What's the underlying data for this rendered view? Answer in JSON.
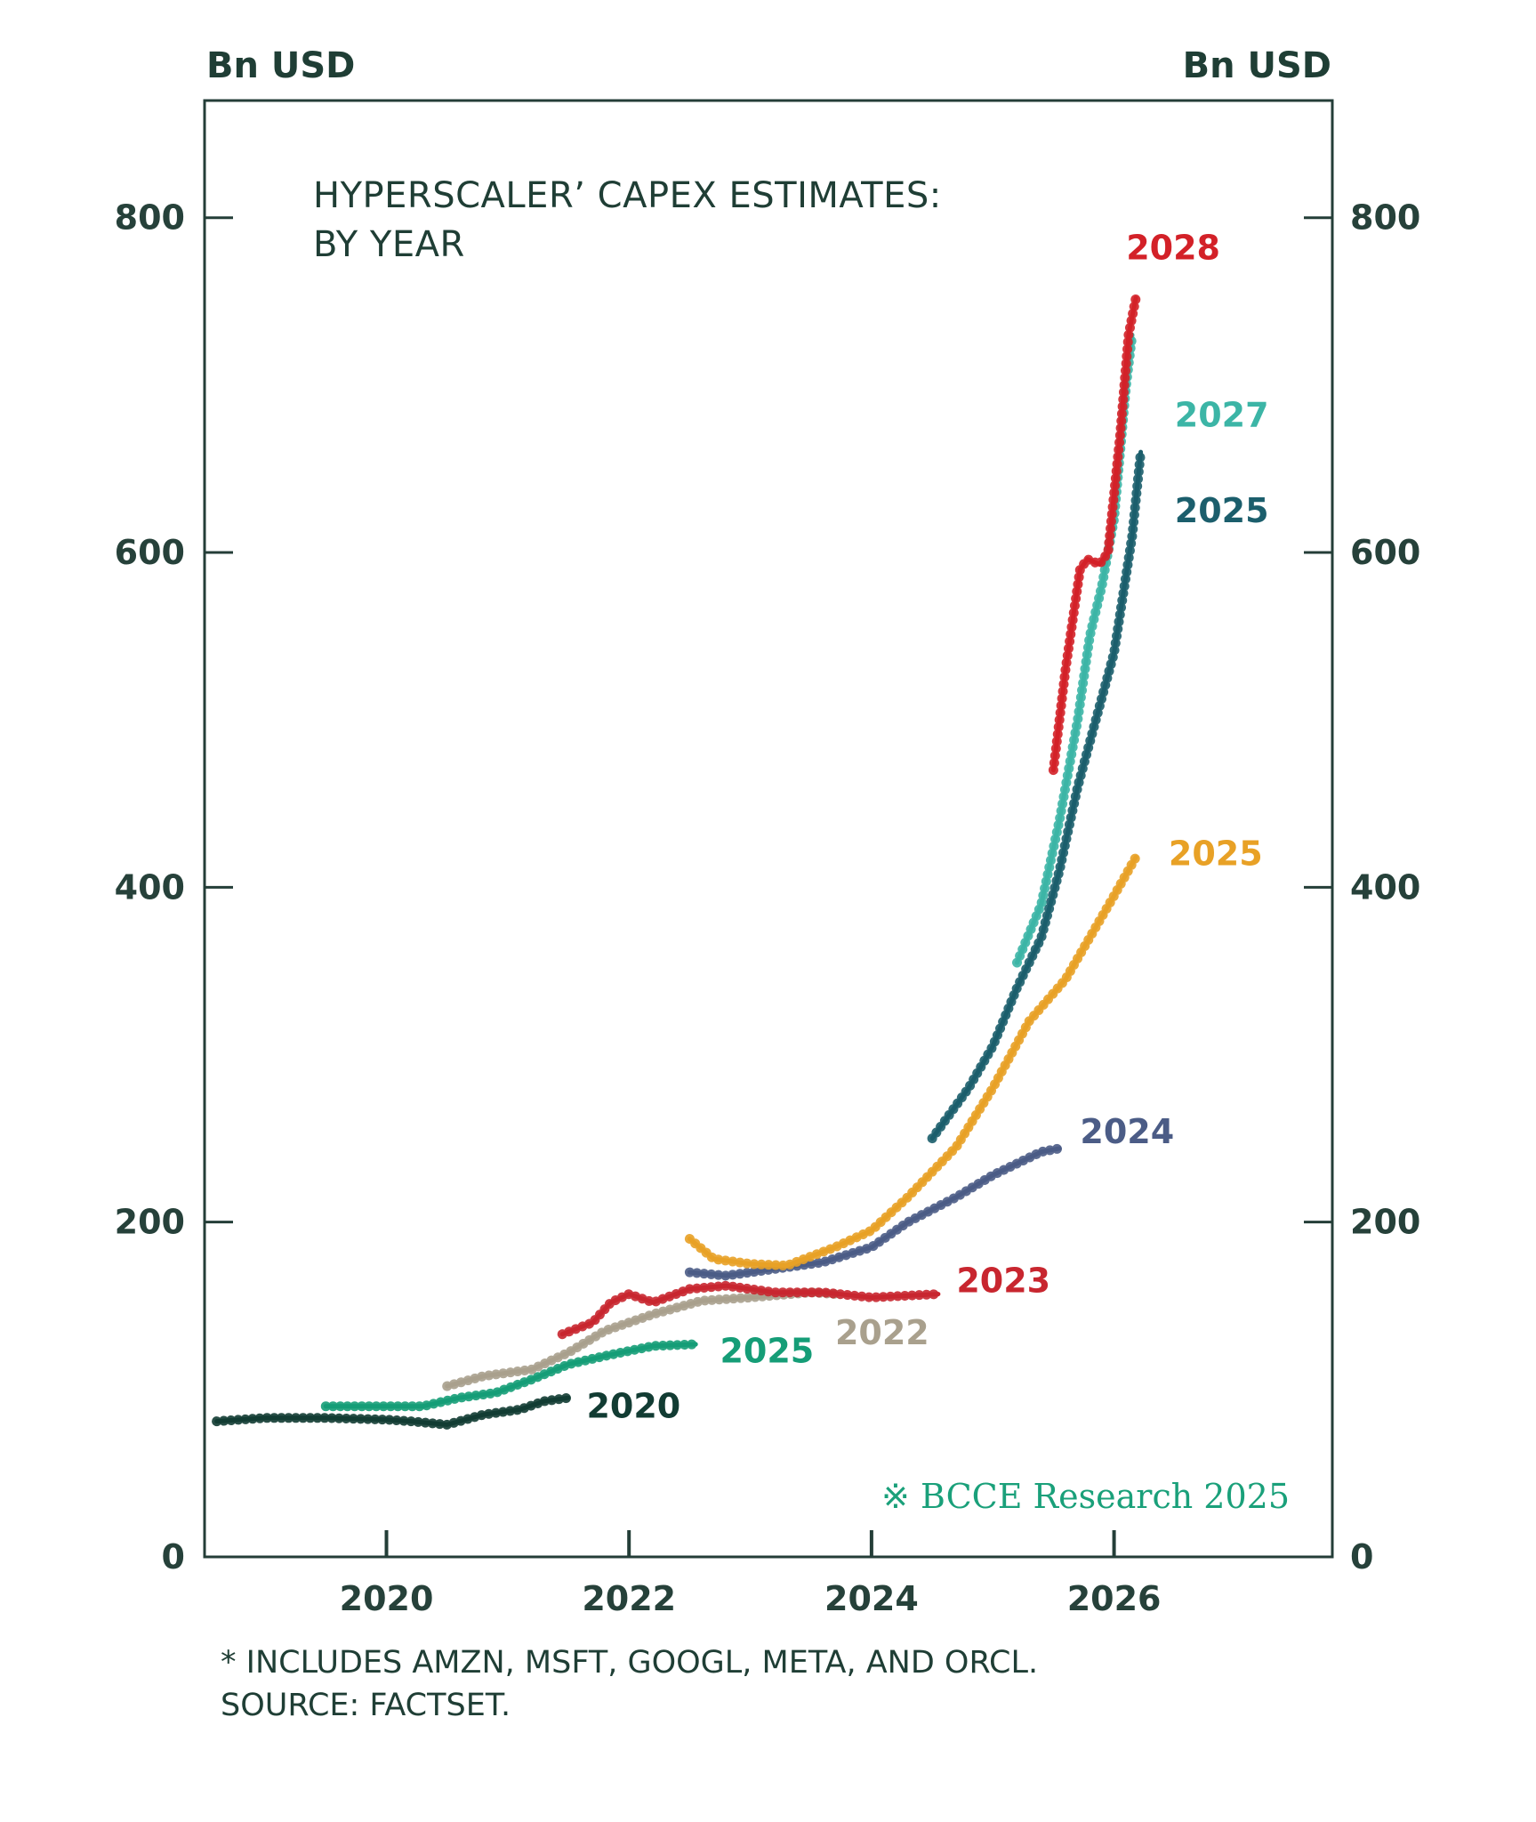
{
  "chart_data": {
    "type": "line",
    "title": "HYPERSCALER’ CAPEX ESTIMATES:",
    "subtitle": "BY YEAR",
    "ylabel_left": "Bn USD",
    "ylabel_right": "Bn USD",
    "ylim": [
      0,
      870
    ],
    "xlim": [
      2018.5,
      2027.8
    ],
    "y_ticks_left": [
      {
        "value": 0,
        "label": "0"
      },
      {
        "value": 200,
        "label": "200"
      },
      {
        "value": 400,
        "label": "400"
      },
      {
        "value": 600,
        "label": "600"
      },
      {
        "value": 800,
        "label": "800"
      }
    ],
    "y_ticks_right": [
      {
        "value": 0,
        "label": "0"
      },
      {
        "value": 200,
        "label": "200"
      },
      {
        "value": 400,
        "label": "400"
      },
      {
        "value": 600,
        "label": "600"
      },
      {
        "value": 800,
        "label": "800"
      }
    ],
    "x_ticks": [
      {
        "value": 2020,
        "label": "2020"
      },
      {
        "value": 2022,
        "label": "2022"
      },
      {
        "value": 2024,
        "label": "2024"
      },
      {
        "value": 2026,
        "label": "2026"
      }
    ],
    "grid": false,
    "series": [
      {
        "name": "2020",
        "color": "#123c33",
        "label_at": [
          2021.65,
          90
        ],
        "x": [
          2018.6,
          2019.0,
          2019.5,
          2020.0,
          2020.2,
          2020.5,
          2020.8,
          2021.1,
          2021.3,
          2021.5
        ],
        "y": [
          81,
          83,
          83,
          82,
          81,
          79,
          85,
          88,
          93,
          95
        ]
      },
      {
        "name": "2025",
        "color": "#159d77",
        "label_at": [
          2022.75,
          123
        ],
        "x": [
          2019.5,
          2020.0,
          2020.3,
          2020.6,
          2020.9,
          2021.2,
          2021.5,
          2021.8,
          2022.2,
          2022.55
        ],
        "y": [
          90,
          90,
          90,
          95,
          98,
          106,
          115,
          120,
          126,
          127
        ]
      },
      {
        "name": "2022",
        "color": "#a9a08d",
        "label_at": [
          2023.7,
          134
        ],
        "x": [
          2020.5,
          2020.8,
          2021.2,
          2021.5,
          2021.8,
          2022.2,
          2022.6,
          2023.0,
          2023.5,
          2023.7
        ],
        "y": [
          102,
          108,
          112,
          122,
          135,
          145,
          153,
          155,
          158,
          157
        ]
      },
      {
        "name": "2023",
        "color": "#c8262f",
        "label_at": [
          2024.7,
          165
        ],
        "x": [
          2021.45,
          2021.7,
          2021.85,
          2022.0,
          2022.2,
          2022.5,
          2022.8,
          2023.2,
          2023.6,
          2024.0,
          2024.55
        ],
        "y": [
          133,
          140,
          152,
          157,
          152,
          160,
          162,
          158,
          158,
          155,
          157
        ]
      },
      {
        "name": "2024",
        "color": "#4b5c86",
        "label_at": [
          2025.72,
          254
        ],
        "x": [
          2022.5,
          2022.8,
          2023.2,
          2023.6,
          2024.0,
          2024.3,
          2024.7,
          2025.0,
          2025.4,
          2025.55
        ],
        "y": [
          170,
          168,
          172,
          176,
          185,
          200,
          215,
          228,
          242,
          244
        ]
      },
      {
        "name": "2025",
        "color": "#e8a126",
        "label_at": [
          2026.45,
          420
        ],
        "x": [
          2022.5,
          2022.7,
          2023.0,
          2023.3,
          2023.7,
          2024.0,
          2024.3,
          2024.7,
          2025.0,
          2025.3,
          2025.6,
          2025.8,
          2026.0,
          2026.18
        ],
        "y": [
          190,
          178,
          175,
          174,
          185,
          195,
          215,
          245,
          280,
          320,
          345,
          370,
          395,
          418
        ]
      },
      {
        "name": "2025",
        "color": "#1b5e6c",
        "label_at": [
          2026.5,
          625
        ],
        "x": [
          2024.5,
          2024.8,
          2025.0,
          2025.2,
          2025.4,
          2025.55,
          2025.7,
          2025.85,
          2026.0,
          2026.15,
          2026.22
        ],
        "y": [
          250,
          280,
          305,
          340,
          370,
          410,
          460,
          500,
          540,
          610,
          660
        ]
      },
      {
        "name": "2027",
        "color": "#3cb5a6",
        "label_at": [
          2026.5,
          682
        ],
        "x": [
          2025.2,
          2025.4,
          2025.55,
          2025.7,
          2025.8,
          2025.9,
          2026.0,
          2026.1,
          2026.15
        ],
        "y": [
          355,
          390,
          440,
          500,
          550,
          580,
          620,
          700,
          730
        ]
      },
      {
        "name": "2028",
        "color": "#d32128",
        "label_at": [
          2026.1,
          782
        ],
        "x": [
          2025.5,
          2025.6,
          2025.72,
          2025.78,
          2025.88,
          2025.95,
          2026.05,
          2026.12,
          2026.18
        ],
        "y": [
          470,
          530,
          590,
          596,
          593,
          600,
          670,
          730,
          752
        ]
      }
    ],
    "footnote": "* INCLUDES AMZN, MSFT, GOOGL, META, AND ORCL.",
    "source": "SOURCE: FACTSET.",
    "watermark": "※ BCCE Research 2025"
  }
}
